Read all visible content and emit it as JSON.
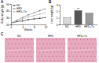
{
  "chart_data": [
    {
      "type": "line",
      "x_label": "Weeks",
      "y_label": "Body weight (g)",
      "x": [
        0,
        2,
        4,
        6,
        8,
        10,
        12
      ],
      "series": [
        {
          "name": "NC",
          "color": "#222222",
          "marker": "circle",
          "values": [
            22,
            24,
            25,
            27,
            28,
            29,
            30
          ]
        },
        {
          "name": "HFD",
          "color": "#777777",
          "marker": "circle",
          "values": [
            22,
            26,
            30,
            34,
            37,
            40,
            43
          ]
        },
        {
          "name": "HFD+Tx",
          "color": "#aaaaaa",
          "marker": "circle",
          "values": [
            22,
            25,
            28,
            31,
            33,
            35,
            37
          ]
        }
      ],
      "xlim": [
        0,
        12
      ],
      "xticks": [
        0,
        4,
        8,
        12
      ],
      "ylim": [
        20,
        50
      ],
      "yticks": [
        20,
        30,
        40,
        50
      ],
      "legend": "top-left"
    },
    {
      "type": "bar",
      "y_label": "Liver weight (g)",
      "categories": [
        "NC",
        "HFD",
        "HFD+Tx"
      ],
      "values": [
        1.0,
        2.1,
        1.7
      ],
      "colors": [
        "#d9d9d9",
        "#555555",
        "#999999"
      ],
      "annotation": "**",
      "ylim": [
        0,
        3
      ],
      "yticks": [
        0,
        1,
        2,
        3
      ]
    }
  ],
  "panel_labels": [
    "A",
    "B",
    "C"
  ],
  "images": {
    "labels": [
      "NC",
      "HFD",
      "HFD+Tx"
    ]
  }
}
